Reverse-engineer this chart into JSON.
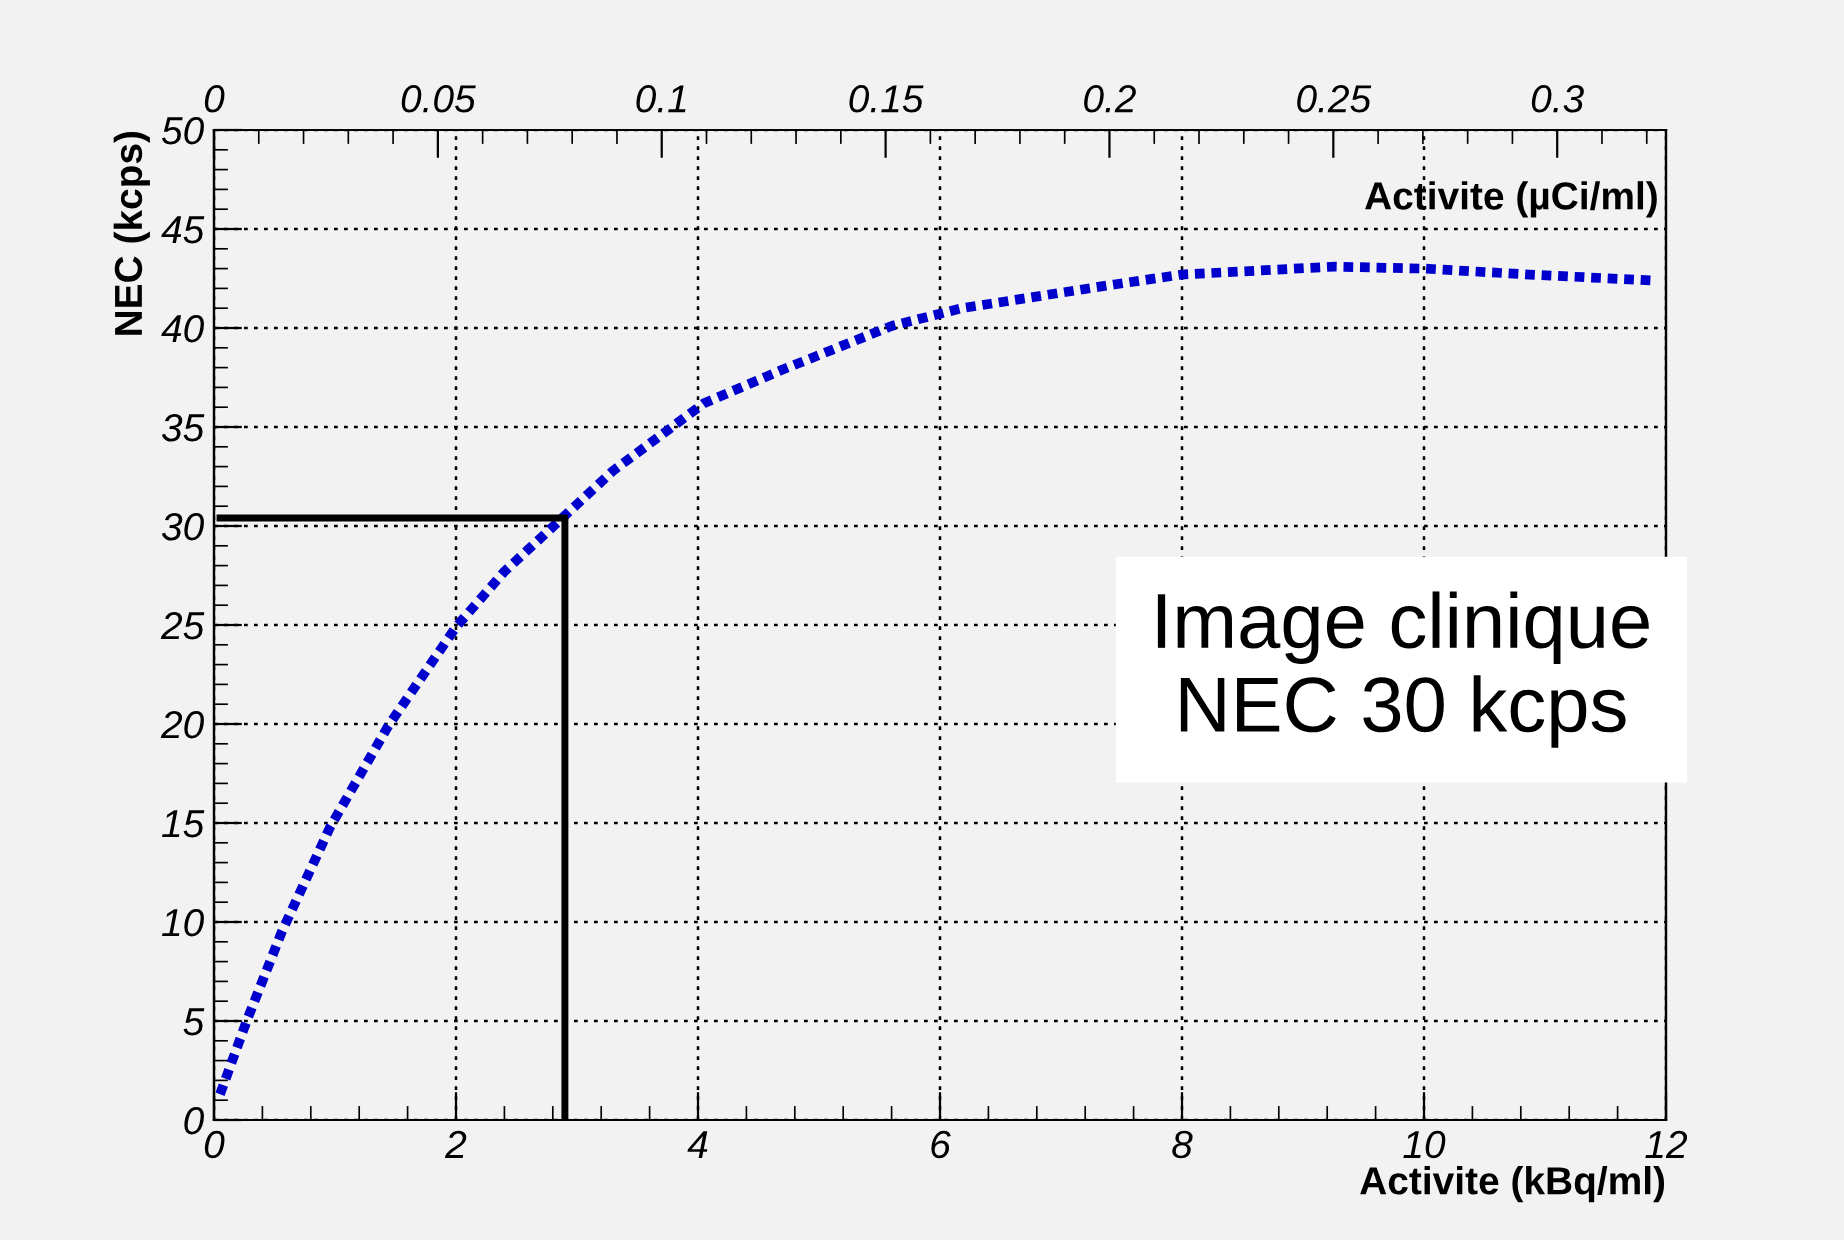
{
  "chart_data": {
    "type": "line",
    "xlabel": "Activite (kBq/ml)",
    "ylabel": "NEC (kcps)",
    "x2label": "Activite (µCi/ml)",
    "xlim": [
      0,
      12
    ],
    "xticks": [
      0,
      2,
      4,
      6,
      8,
      10,
      12
    ],
    "ylim": [
      0,
      50
    ],
    "yticks": [
      0,
      5,
      10,
      15,
      20,
      25,
      30,
      35,
      40,
      45,
      50
    ],
    "x2lim": [
      0,
      0.3243
    ],
    "x2ticks": [
      0,
      0.05,
      0.1,
      0.15,
      0.2,
      0.25,
      0.3
    ],
    "grid": true,
    "marker": "none",
    "series": [
      {
        "color": "#0000cc",
        "line_style": "dotted",
        "x": [
          0.05,
          0.27,
          0.56,
          0.96,
          1.44,
          2.0,
          2.4,
          2.86,
          3.3,
          4.05,
          4.7,
          5.6,
          6.18,
          7.44,
          8.0,
          9.26,
          10.0,
          10.87,
          11.88
        ],
        "values": [
          1.3,
          5.0,
          9.5,
          14.8,
          19.9,
          24.9,
          27.7,
          30.3,
          32.8,
          36.2,
          37.9,
          40.1,
          41.0,
          42.2,
          42.7,
          43.1,
          43.0,
          42.7,
          42.4
        ]
      },
      {
        "color": "#000000",
        "line_style": "solid",
        "x": [
          0.05,
          2.9,
          2.9
        ],
        "values": [
          30.4,
          30.4,
          0
        ]
      }
    ],
    "annotations": [
      "Image clinique\nNEC 30 kcps"
    ]
  }
}
